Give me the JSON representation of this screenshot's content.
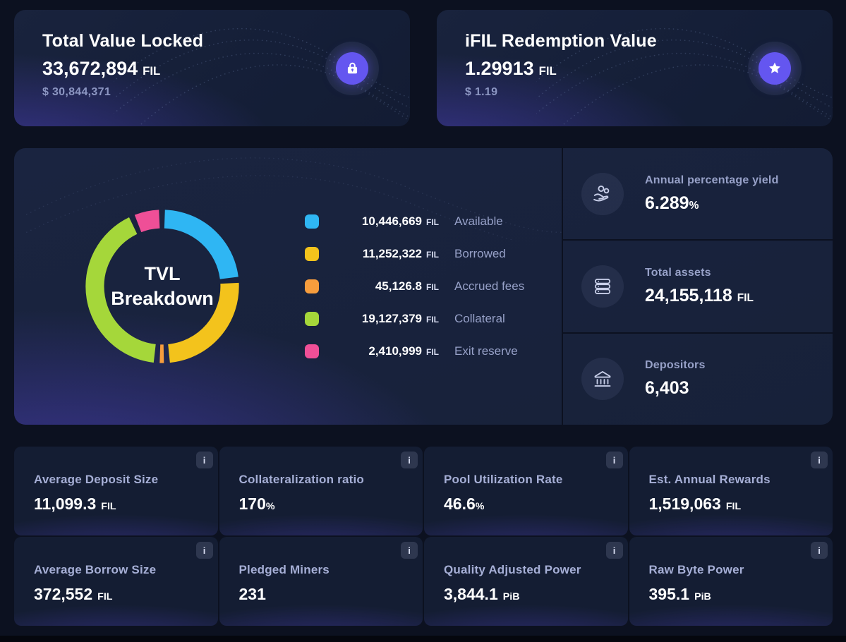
{
  "colors": {
    "accent": "#6456F0",
    "page_bg": "#0C1120",
    "card_bg": "#161F38"
  },
  "top_cards": [
    {
      "title": "Total Value Locked",
      "value": "33,672,894",
      "unit": "FIL",
      "usd": "$ 30,844,371",
      "icon": "lock-icon"
    },
    {
      "title": "iFIL Redemption Value",
      "value": "1.29913",
      "unit": "FIL",
      "usd": "$ 1.19",
      "icon": "star-icon"
    }
  ],
  "chart_data": {
    "type": "pie",
    "style": "donut",
    "title": "TVL Breakdown",
    "legend_position": "right",
    "segments": [
      {
        "label": "Available",
        "value": 10446669,
        "display": "10,446,669",
        "unit": "FIL",
        "color": "#2FB6F3"
      },
      {
        "label": "Borrowed",
        "value": 11252322,
        "display": "11,252,322",
        "unit": "FIL",
        "color": "#F3C31C"
      },
      {
        "label": "Accrued fees",
        "value": 45126.8,
        "display": "45,126.8",
        "unit": "FIL",
        "color": "#F79D3D"
      },
      {
        "label": "Collateral",
        "value": 19127379,
        "display": "19,127,379",
        "unit": "FIL",
        "color": "#A5D73A"
      },
      {
        "label": "Exit reserve",
        "value": 2410999,
        "display": "2,410,999",
        "unit": "FIL",
        "color": "#EF4F97"
      }
    ]
  },
  "side_stats": [
    {
      "label": "Annual percentage yield",
      "value": "6.289",
      "unit": "%",
      "icon": "hand-coins-icon"
    },
    {
      "label": "Total assets",
      "value": "24,155,118",
      "unit": "FIL",
      "icon": "coin-stack-icon"
    },
    {
      "label": "Depositors",
      "value": "6,403",
      "unit": "",
      "icon": "bank-icon"
    }
  ],
  "bottom_cards": [
    {
      "label": "Average Deposit Size",
      "value": "11,099.3",
      "unit": "FIL"
    },
    {
      "label": "Collateralization ratio",
      "value": "170",
      "unit": "%"
    },
    {
      "label": "Pool Utilization Rate",
      "value": "46.6",
      "unit": "%"
    },
    {
      "label": "Est. Annual Rewards",
      "value": "1,519,063",
      "unit": "FIL"
    },
    {
      "label": "Average Borrow Size",
      "value": "372,552",
      "unit": "FIL"
    },
    {
      "label": "Pledged Miners",
      "value": "231",
      "unit": ""
    },
    {
      "label": "Quality Adjusted Power",
      "value": "3,844.1",
      "unit": "PiB"
    },
    {
      "label": "Raw Byte Power",
      "value": "395.1",
      "unit": "PiB"
    }
  ],
  "info_badge": {
    "label": "i"
  }
}
